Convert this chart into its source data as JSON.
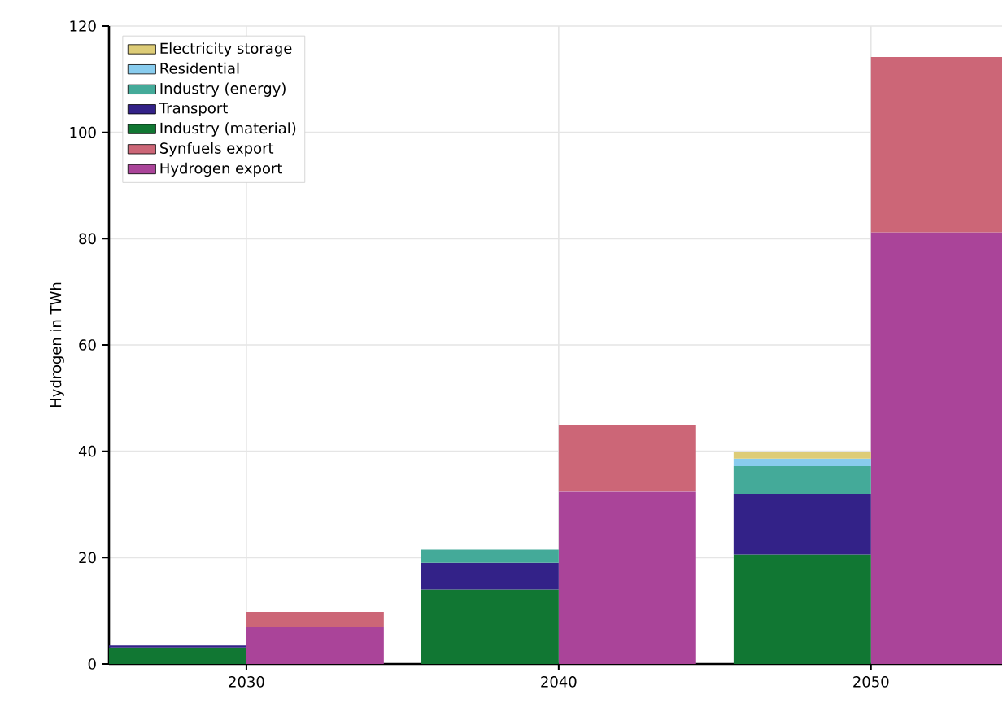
{
  "chart_data": {
    "type": "bar",
    "stacked": true,
    "ylabel": "Hydrogen in TWh",
    "x": [
      2027.8,
      2032.2,
      2037.8,
      2042.2,
      2047.8,
      2052.2
    ],
    "xlim": [
      2025.6,
      2054.2
    ],
    "xticks": [
      2030,
      2040,
      2050
    ],
    "ylim": [
      0,
      120
    ],
    "yticks": [
      0,
      20,
      40,
      60,
      80,
      100,
      120
    ],
    "grid": true,
    "legend": "top left",
    "series": [
      {
        "name": "Hydrogen export",
        "color": "#aa4499",
        "values": [
          null,
          7.0,
          null,
          32.4,
          null,
          81.2
        ]
      },
      {
        "name": "Synfuels export",
        "color": "#cc6677",
        "values": [
          null,
          2.8,
          null,
          12.6,
          null,
          33.0
        ]
      },
      {
        "name": "Industry (material)",
        "color": "#117733",
        "values": [
          3.1,
          null,
          14.0,
          null,
          20.6,
          null
        ]
      },
      {
        "name": "Transport",
        "color": "#332288",
        "values": [
          0.4,
          null,
          5.0,
          null,
          11.4,
          null
        ]
      },
      {
        "name": "Industry (energy)",
        "color": "#44aa99",
        "values": [
          0,
          null,
          2.5,
          null,
          5.2,
          null
        ]
      },
      {
        "name": "Residential",
        "color": "#88ccee",
        "values": [
          0,
          null,
          0,
          null,
          1.4,
          null
        ]
      },
      {
        "name": "Electricity storage",
        "color": "#ddcc77",
        "values": [
          0,
          null,
          0,
          null,
          1.2,
          null
        ]
      }
    ]
  }
}
